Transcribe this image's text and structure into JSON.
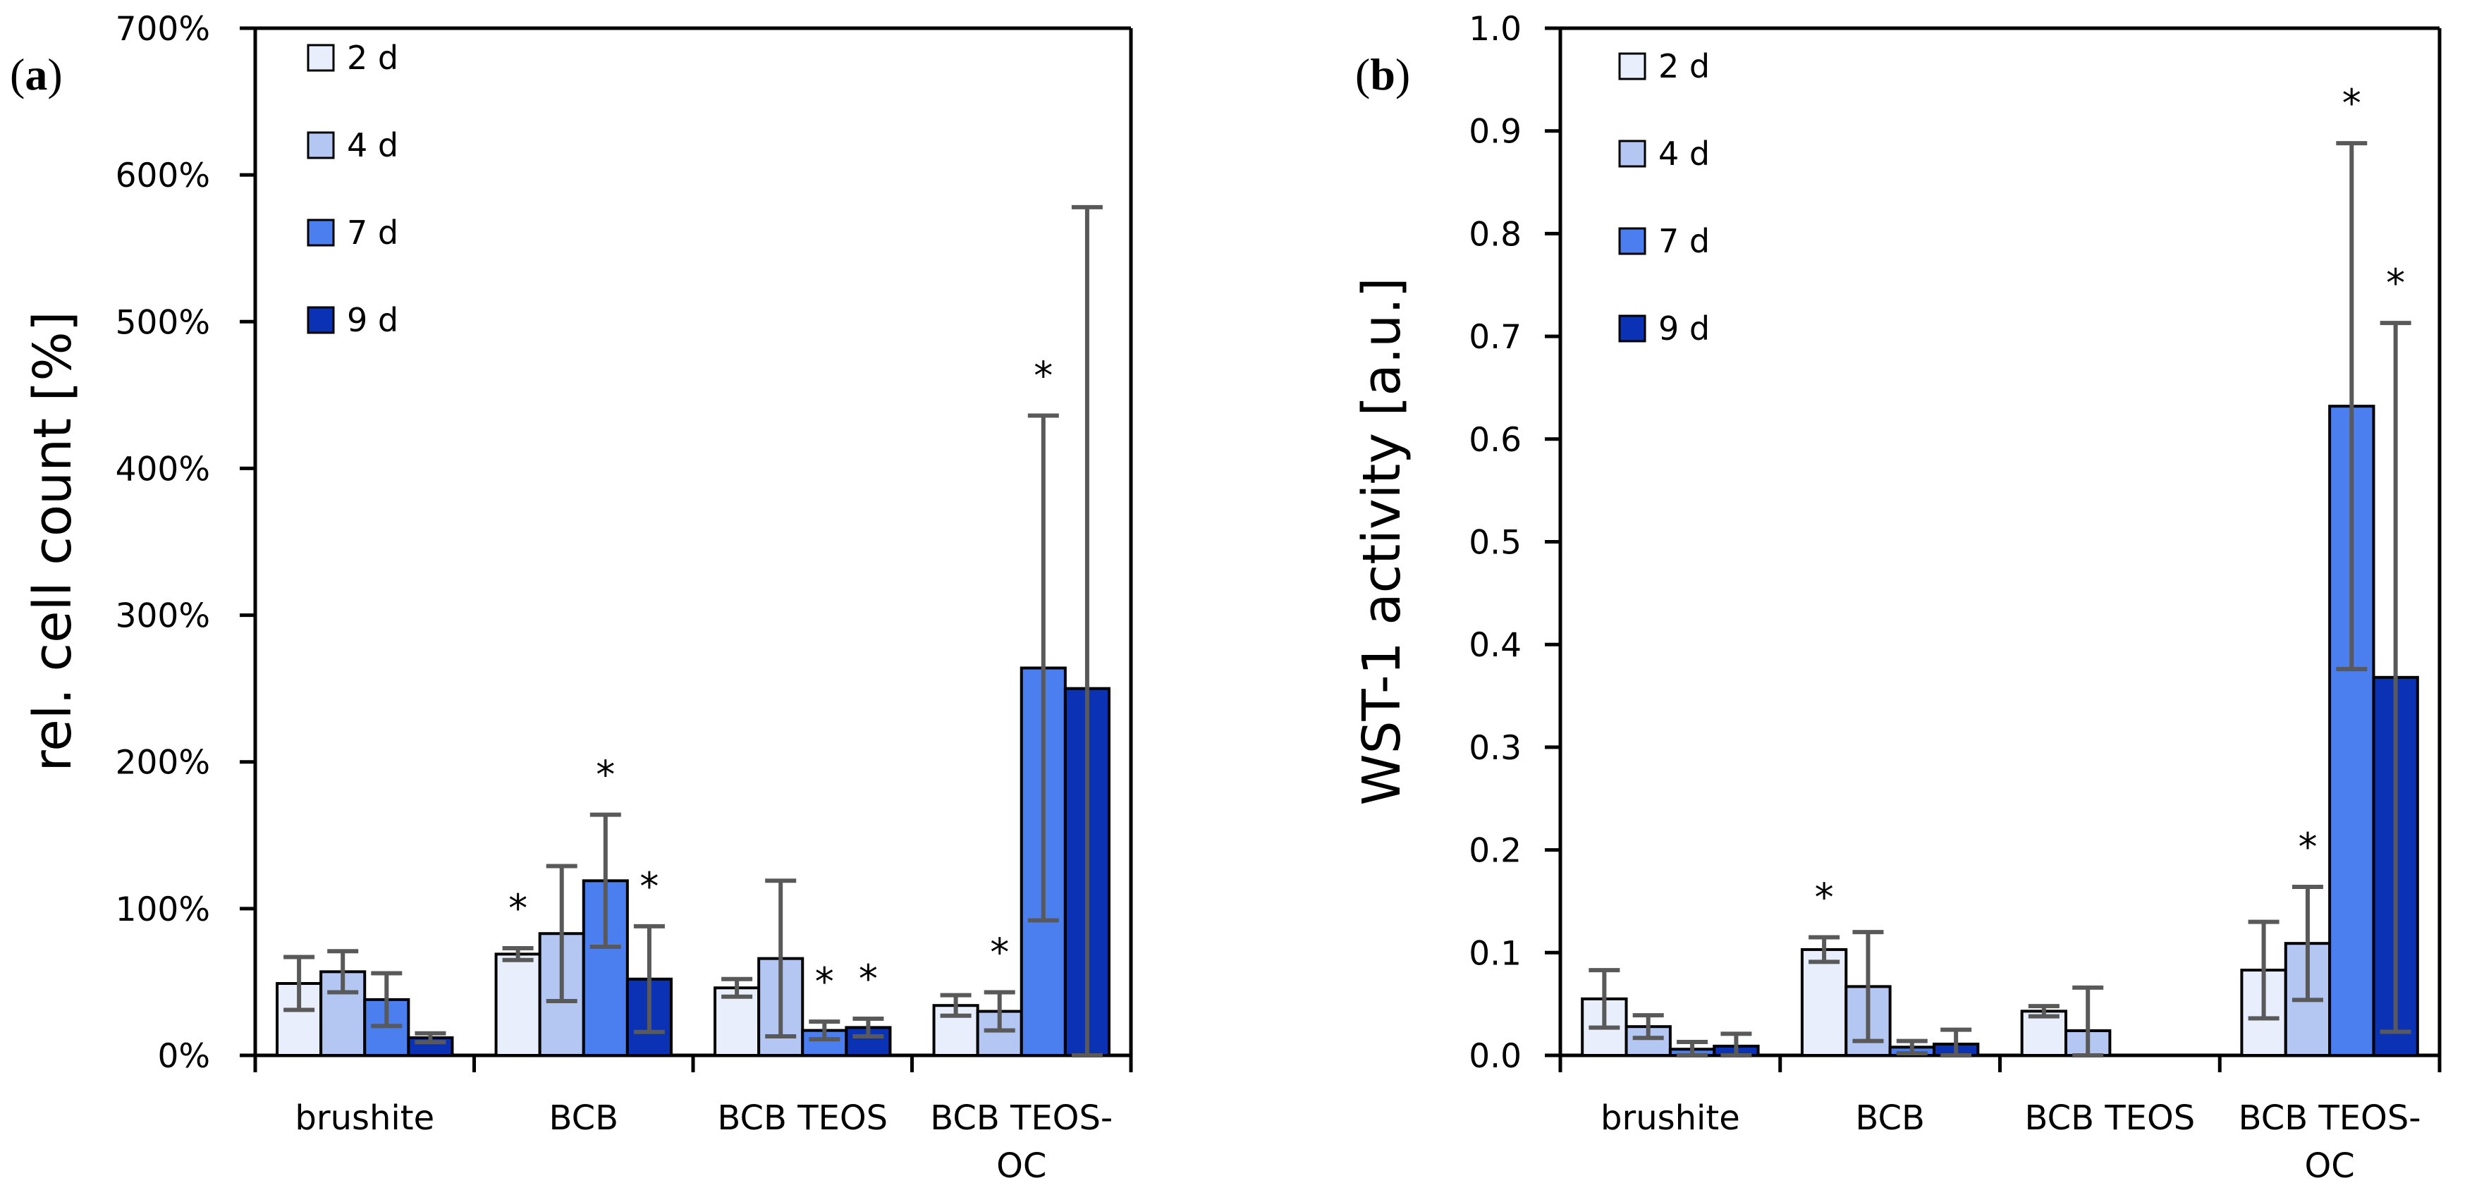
{
  "chart_data": [
    {
      "type": "bar",
      "panel_label": "(a)",
      "panel_letter": "a",
      "ylabel": "rel. cell count [%]",
      "ylim": [
        0,
        700
      ],
      "ytick_values": [
        0,
        100,
        200,
        300,
        400,
        500,
        600,
        700
      ],
      "ytick_labels": [
        "0%",
        "100%",
        "200%",
        "300%",
        "400%",
        "500%",
        "600%",
        "700%"
      ],
      "categories": [
        {
          "lines": [
            "brushite"
          ]
        },
        {
          "lines": [
            "BCB"
          ]
        },
        {
          "lines": [
            "BCB TEOS"
          ]
        },
        {
          "lines": [
            "BCB TEOS-",
            "OC"
          ]
        }
      ],
      "legend": {
        "position": "top-left"
      },
      "series": [
        {
          "name": "2 d",
          "color": "#E8EEFB",
          "values": [
            49,
            69,
            46,
            34
          ],
          "errors": [
            18,
            4,
            6,
            7
          ],
          "significant": [
            false,
            true,
            false,
            false
          ]
        },
        {
          "name": "4 d",
          "color": "#B4C6F2",
          "values": [
            57,
            83,
            66,
            30
          ],
          "errors": [
            14,
            46,
            53,
            13
          ],
          "significant": [
            false,
            false,
            false,
            true
          ]
        },
        {
          "name": "7 d",
          "color": "#4B7EEF",
          "values": [
            38,
            119,
            17,
            264
          ],
          "errors": [
            18,
            45,
            6,
            172
          ],
          "significant": [
            false,
            true,
            true,
            true
          ]
        },
        {
          "name": "9 d",
          "color": "#0B32B4",
          "values": [
            12,
            52,
            19,
            250
          ],
          "errors": [
            3,
            36,
            6,
            328
          ],
          "significant": [
            false,
            true,
            true,
            false
          ]
        }
      ],
      "significance_marker": "*"
    },
    {
      "type": "bar",
      "panel_label": "(b)",
      "panel_letter": "b",
      "ylabel": "WST-1 activity [a.u.]",
      "ylim": [
        0,
        1.0
      ],
      "ytick_values": [
        0,
        0.1,
        0.2,
        0.3,
        0.4,
        0.5,
        0.6,
        0.7,
        0.8,
        0.9,
        1.0
      ],
      "ytick_labels": [
        "0.0",
        "0.1",
        "0.2",
        "0.3",
        "0.4",
        "0.5",
        "0.6",
        "0.7",
        "0.8",
        "0.9",
        "1.0"
      ],
      "categories": [
        {
          "lines": [
            "brushite"
          ]
        },
        {
          "lines": [
            "BCB"
          ]
        },
        {
          "lines": [
            "BCB TEOS"
          ]
        },
        {
          "lines": [
            "BCB TEOS-",
            "OC"
          ]
        }
      ],
      "legend": {
        "position": "top-left"
      },
      "series": [
        {
          "name": "2 d",
          "color": "#E8EEFB",
          "values": [
            0.055,
            0.103,
            0.043,
            0.083
          ],
          "errors": [
            0.028,
            0.012,
            0.005,
            0.047
          ],
          "significant": [
            false,
            true,
            false,
            false
          ]
        },
        {
          "name": "4 d",
          "color": "#B4C6F2",
          "values": [
            0.028,
            0.067,
            0.024,
            0.109
          ],
          "errors": [
            0.011,
            0.053,
            0.042,
            0.055
          ],
          "significant": [
            false,
            false,
            false,
            true
          ]
        },
        {
          "name": "7 d",
          "color": "#4B7EEF",
          "values": [
            0.006,
            0.008,
            0.0,
            0.632
          ],
          "errors": [
            0.007,
            0.006,
            0.0,
            0.256
          ],
          "significant": [
            false,
            false,
            false,
            true
          ]
        },
        {
          "name": "9 d",
          "color": "#0B32B4",
          "values": [
            0.009,
            0.011,
            0.0,
            0.368
          ],
          "errors": [
            0.012,
            0.014,
            0.0,
            0.345
          ],
          "significant": [
            false,
            false,
            false,
            true
          ]
        }
      ],
      "significance_marker": "*"
    }
  ]
}
